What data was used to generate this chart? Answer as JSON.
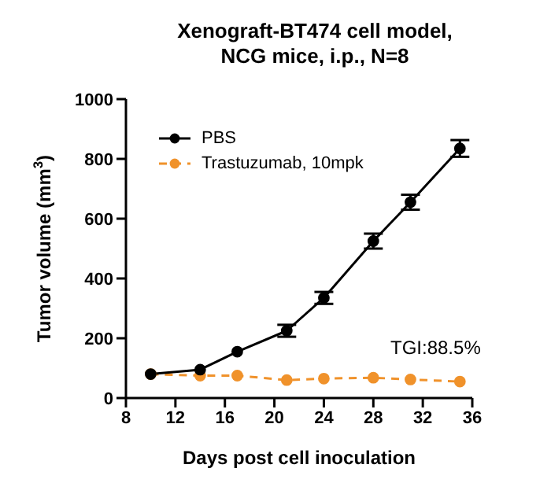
{
  "chart_data": {
    "type": "line",
    "title": "Xenograft-BT474 cell model,\nNCG mice, i.p., N=8",
    "xlabel": "Days post cell inoculation",
    "ylabel": "Tumor volume (mm$^{3}$)",
    "x": [
      10,
      14,
      17,
      21,
      24,
      28,
      31,
      35
    ],
    "series": [
      {
        "name": "PBS",
        "color": "#000000",
        "line_style": "solid",
        "values": [
          80,
          95,
          155,
          225,
          335,
          525,
          655,
          835
        ],
        "errors": [
          null,
          null,
          null,
          20,
          20,
          25,
          25,
          28
        ]
      },
      {
        "name": "Trastuzumab, 10mpk",
        "color": "#f0922b",
        "line_style": "dashed",
        "values": [
          80,
          75,
          75,
          60,
          65,
          68,
          62,
          55
        ]
      }
    ],
    "xlim": [
      8,
      36
    ],
    "xticks": [
      8,
      12,
      16,
      20,
      24,
      28,
      32,
      36
    ],
    "ylim": [
      0,
      1000
    ],
    "yticks": [
      0,
      200,
      400,
      600,
      800,
      1000
    ],
    "annotations": [
      "TGI:88.5%"
    ],
    "marker": "circle",
    "legend": "top left",
    "grid": false
  }
}
